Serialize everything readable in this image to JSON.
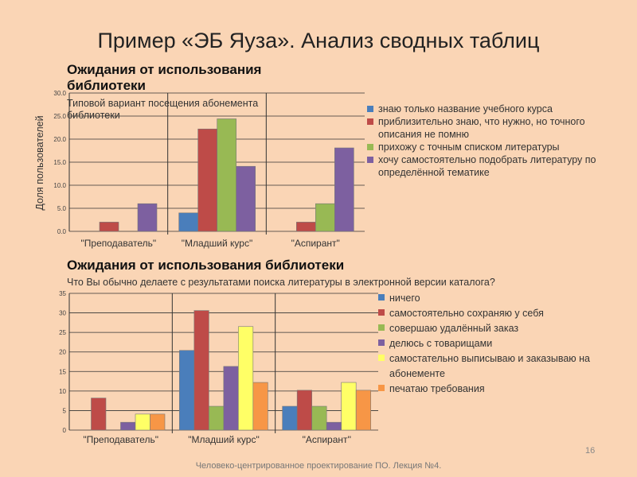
{
  "title": "Пример «ЭБ Яуза». Анализ сводных таблиц",
  "footer": "Человеко-центрированное проектирование ПО. Лекция №4.",
  "page_number": "16",
  "chart_data": [
    {
      "type": "bar",
      "title": "Ожидания от использования библиотеки",
      "subtitle": "Типовой вариант посещения абонемента библиотеки",
      "ylabel": "Доля пользователей",
      "ylim": [
        0,
        30
      ],
      "yticks": [
        "0.0",
        "5.0",
        "10.0",
        "15.0",
        "20.0",
        "25.0",
        "30.0"
      ],
      "grid": true,
      "legend": "right",
      "categories": [
        "\"Преподаватель\"",
        "\"Младший курс\"",
        "\"Аспирант\""
      ],
      "series": [
        {
          "name": "знаю только название учебного курса",
          "color": "#4a7ebb",
          "values": [
            0,
            4.0,
            0
          ]
        },
        {
          "name": "приблизительно знаю, что нужно, но точного описания не помню",
          "color": "#be4b48",
          "values": [
            2.0,
            22.2,
            2.0
          ]
        },
        {
          "name": "прихожу с точным списком литературы",
          "color": "#98b954",
          "values": [
            0,
            24.4,
            6.0
          ]
        },
        {
          "name": "хочу самостоятельно подобрать литературу по определённой тематике",
          "color": "#7d60a0",
          "values": [
            6.0,
            14.1,
            18.1
          ]
        }
      ]
    },
    {
      "type": "bar",
      "title": "Ожидания от использования библиотеки",
      "subtitle": "Что Вы обычно делаете с результатами поиска литературы в электронной версии каталога?",
      "ylabel": "",
      "ylim": [
        0,
        35
      ],
      "yticks": [
        "0",
        "5",
        "10",
        "15",
        "20",
        "25",
        "30",
        "35"
      ],
      "grid": true,
      "legend": "right",
      "categories": [
        "\"Преподаватель\"",
        "\"Младший курс\"",
        "\"Аспирант''"
      ],
      "series": [
        {
          "name": "ничего",
          "color": "#4a7ebb",
          "values": [
            0,
            20.4,
            6.1
          ]
        },
        {
          "name": "самостоятельно сохраняю у себя",
          "color": "#be4b48",
          "values": [
            8.2,
            30.6,
            10.2
          ]
        },
        {
          "name": "совершаю удалённый заказ",
          "color": "#98b954",
          "values": [
            0,
            6.1,
            6.1
          ]
        },
        {
          "name": "делюсь с товарищами",
          "color": "#7d60a0",
          "values": [
            2.0,
            16.3,
            2.0
          ]
        },
        {
          "name": "самостательно выписываю и заказываю на абонементе",
          "color": "#ffff66",
          "values": [
            4.1,
            26.5,
            12.2
          ]
        },
        {
          "name": "печатаю требования",
          "color": "#f79646",
          "values": [
            4.1,
            12.2,
            10.2
          ]
        }
      ]
    }
  ]
}
